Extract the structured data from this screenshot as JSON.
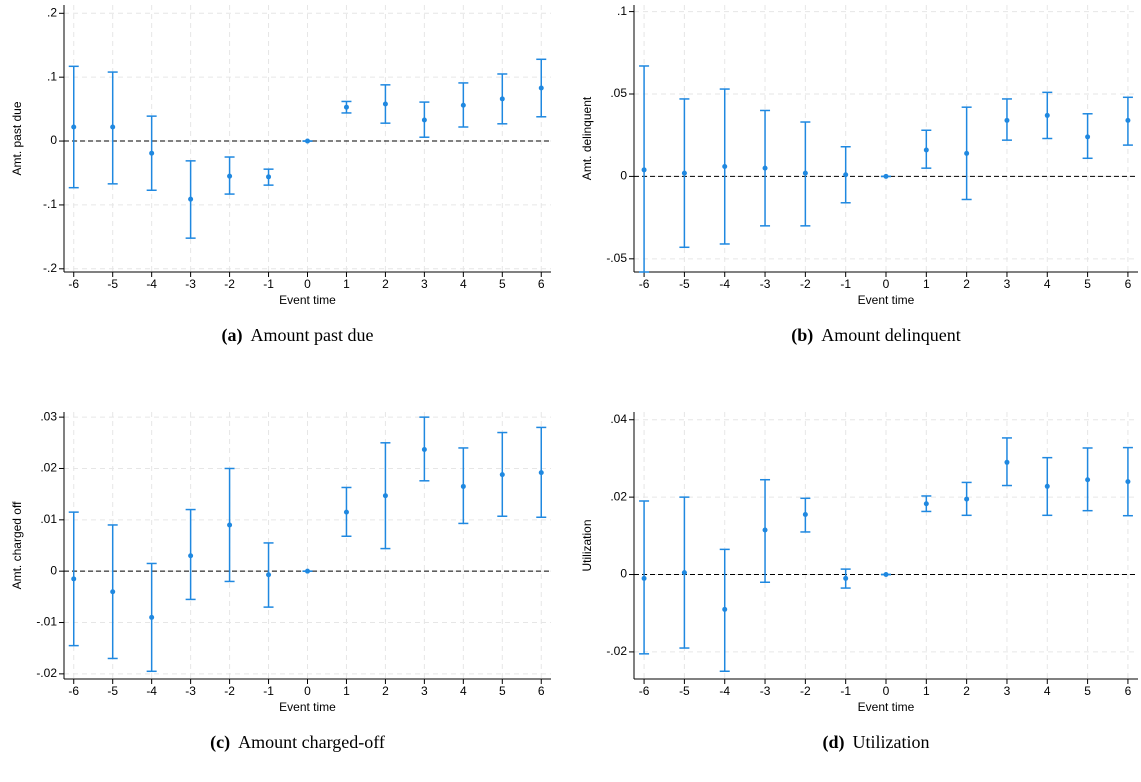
{
  "chart_data": [
    {
      "type": "errorbar",
      "caption_label": "(a)",
      "caption": "Amount past due",
      "xlabel": "Event time",
      "ylabel": "Amt. past due",
      "color": "#1f88e0",
      "grid": true,
      "refline": 0,
      "x": [
        -6,
        -5,
        -4,
        -3,
        -2,
        -1,
        0,
        1,
        2,
        3,
        4,
        5,
        6
      ],
      "values": [
        0.022,
        0.022,
        -0.019,
        -0.091,
        -0.055,
        -0.056,
        0,
        0.053,
        0.058,
        0.033,
        0.056,
        0.066,
        0.083
      ],
      "lower": [
        -0.073,
        -0.067,
        -0.077,
        -0.152,
        -0.083,
        -0.069,
        0,
        0.044,
        0.028,
        0.006,
        0.022,
        0.027,
        0.038
      ],
      "upper": [
        0.117,
        0.108,
        0.039,
        -0.031,
        -0.025,
        -0.044,
        0,
        0.062,
        0.088,
        0.061,
        0.091,
        0.105,
        0.128
      ],
      "xlim": [
        -6.25,
        6.25
      ],
      "xticks": [
        -6,
        -5,
        -4,
        -3,
        -2,
        -1,
        0,
        1,
        2,
        3,
        4,
        5,
        6
      ],
      "ylim": [
        -0.205,
        0.213
      ],
      "yticks": [
        {
          "value": -0.2,
          "label": "-.2"
        },
        {
          "value": -0.1,
          "label": "-.1"
        },
        0,
        {
          "value": 0.1,
          "label": ".1"
        },
        {
          "value": 0.2,
          "label": ".2"
        }
      ]
    },
    {
      "type": "errorbar",
      "caption_label": "(b)",
      "caption": "Amount delinquent",
      "xlabel": "Event time",
      "ylabel": "Amt. delinquent",
      "color": "#1f88e0",
      "grid": true,
      "refline": 0,
      "x": [
        -6,
        -5,
        -4,
        -3,
        -2,
        -1,
        0,
        1,
        2,
        3,
        4,
        5,
        6
      ],
      "values": [
        0.004,
        0.002,
        0.006,
        0.005,
        0.002,
        0.001,
        0,
        0.016,
        0.014,
        0.034,
        0.037,
        0.024,
        0.034
      ],
      "lower": [
        -0.058,
        -0.043,
        -0.041,
        -0.03,
        -0.03,
        -0.016,
        0,
        0.005,
        -0.014,
        0.022,
        0.023,
        0.011,
        0.019
      ],
      "upper": [
        0.067,
        0.047,
        0.053,
        0.04,
        0.033,
        0.018,
        0,
        0.028,
        0.042,
        0.047,
        0.051,
        0.038,
        0.048
      ],
      "xlim": [
        -6.25,
        6.25
      ],
      "xticks": [
        -6,
        -5,
        -4,
        -3,
        -2,
        -1,
        0,
        1,
        2,
        3,
        4,
        5,
        6
      ],
      "ylim": [
        -0.058,
        0.104
      ],
      "yticks": [
        {
          "value": -0.05,
          "label": "-.05"
        },
        0,
        {
          "value": 0.05,
          "label": ".05"
        },
        {
          "value": 0.1,
          "label": ".1"
        }
      ]
    },
    {
      "type": "errorbar",
      "caption_label": "(c)",
      "caption": "Amount charged-off",
      "xlabel": "Event time",
      "ylabel": "Amt. charged off",
      "color": "#1f88e0",
      "grid": true,
      "refline": 0,
      "x": [
        -6,
        -5,
        -4,
        -3,
        -2,
        -1,
        0,
        1,
        2,
        3,
        4,
        5,
        6
      ],
      "values": [
        -0.0015,
        -0.004,
        -0.009,
        0.003,
        0.009,
        -0.0007,
        0,
        0.0115,
        0.0147,
        0.0237,
        0.0165,
        0.0188,
        0.0192
      ],
      "lower": [
        -0.0145,
        -0.017,
        -0.0195,
        -0.0055,
        -0.002,
        -0.007,
        0,
        0.0068,
        0.0044,
        0.0176,
        0.0093,
        0.0107,
        0.0105
      ],
      "upper": [
        0.0115,
        0.009,
        0.0015,
        0.012,
        0.02,
        0.0055,
        0,
        0.0163,
        0.025,
        0.03,
        0.024,
        0.027,
        0.028
      ],
      "xlim": [
        -6.25,
        6.25
      ],
      "xticks": [
        -6,
        -5,
        -4,
        -3,
        -2,
        -1,
        0,
        1,
        2,
        3,
        4,
        5,
        6
      ],
      "ylim": [
        -0.021,
        0.031
      ],
      "yticks": [
        {
          "value": -0.02,
          "label": "-.02"
        },
        {
          "value": -0.01,
          "label": "-.01"
        },
        0,
        {
          "value": 0.01,
          "label": ".01"
        },
        {
          "value": 0.02,
          "label": ".02"
        },
        {
          "value": 0.03,
          "label": ".03"
        }
      ]
    },
    {
      "type": "errorbar",
      "caption_label": "(d)",
      "caption": "Utilization",
      "xlabel": "Event time",
      "ylabel": "Utilization",
      "color": "#1f88e0",
      "grid": true,
      "refline": 0,
      "x": [
        -6,
        -5,
        -4,
        -3,
        -2,
        -1,
        0,
        1,
        2,
        3,
        4,
        5,
        6
      ],
      "values": [
        -0.001,
        0.0005,
        -0.009,
        0.0115,
        0.0155,
        -0.001,
        0,
        0.0183,
        0.0195,
        0.029,
        0.0228,
        0.0245,
        0.024
      ],
      "lower": [
        -0.0205,
        -0.019,
        -0.025,
        -0.002,
        0.011,
        -0.0035,
        0,
        0.0163,
        0.0153,
        0.023,
        0.0153,
        0.0165,
        0.0152
      ],
      "upper": [
        0.019,
        0.02,
        0.0065,
        0.0245,
        0.0197,
        0.0014,
        0,
        0.0203,
        0.0238,
        0.0353,
        0.0302,
        0.0327,
        0.0328
      ],
      "xlim": [
        -6.25,
        6.25
      ],
      "xticks": [
        -6,
        -5,
        -4,
        -3,
        -2,
        -1,
        0,
        1,
        2,
        3,
        4,
        5,
        6
      ],
      "ylim": [
        -0.027,
        0.042
      ],
      "yticks": [
        {
          "value": -0.02,
          "label": "-.02"
        },
        0,
        {
          "value": 0.02,
          "label": ".02"
        },
        {
          "value": 0.04,
          "label": ".04"
        }
      ]
    }
  ]
}
